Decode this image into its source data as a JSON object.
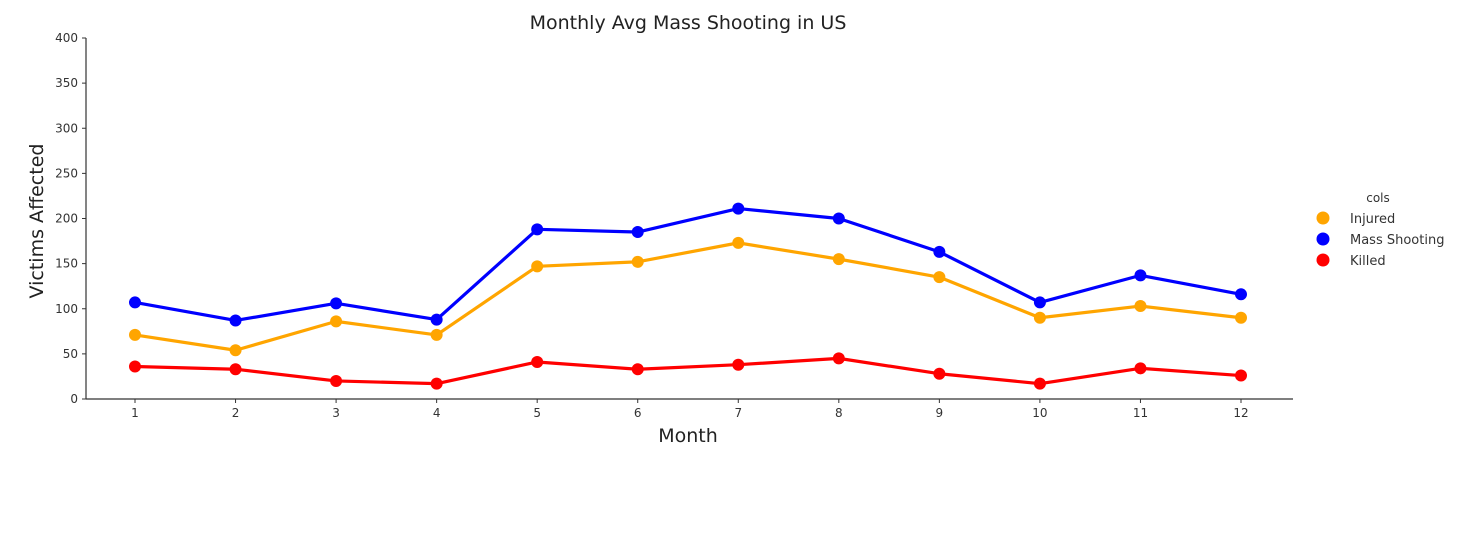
{
  "chart_data": {
    "type": "line",
    "title": "Monthly Avg Mass Shooting in US",
    "xlabel": "Month",
    "ylabel": "Victims Affected",
    "categories": [
      "1",
      "2",
      "3",
      "4",
      "5",
      "6",
      "7",
      "8",
      "9",
      "10",
      "11",
      "12"
    ],
    "ylim": [
      0,
      400
    ],
    "yticks": [
      "0",
      "50",
      "100",
      "150",
      "200",
      "250",
      "300",
      "350",
      "400"
    ],
    "grid": false,
    "legend": {
      "title": "cols",
      "placement": "right"
    },
    "series": [
      {
        "name": "Injured",
        "color": "#FFA500",
        "values": [
          71,
          54,
          86,
          71,
          147,
          152,
          173,
          155,
          135,
          90,
          103,
          90
        ]
      },
      {
        "name": "Mass Shooting",
        "color": "#0000FF",
        "values": [
          107,
          87,
          106,
          88,
          188,
          185,
          211,
          200,
          163,
          107,
          137,
          116
        ]
      },
      {
        "name": "Killed",
        "color": "#FF0000",
        "values": [
          36,
          33,
          20,
          17,
          41,
          33,
          38,
          45,
          28,
          17,
          34,
          26
        ]
      }
    ]
  }
}
